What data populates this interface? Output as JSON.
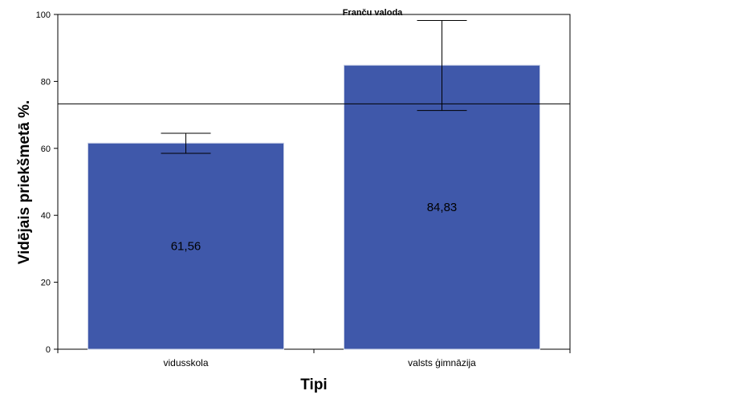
{
  "chart_data": {
    "type": "bar",
    "title": "Franču valoda",
    "xlabel": "Tipi",
    "ylabel": "Vidējais priekšmetā %.",
    "categories": [
      "vidusskola",
      "valsts ģimnāzija"
    ],
    "values": [
      61.56,
      84.83
    ],
    "value_labels": [
      "61,56",
      "84,83"
    ],
    "error_bars": [
      {
        "low": 58.5,
        "high": 64.5
      },
      {
        "low": 71.3,
        "high": 98.2
      }
    ],
    "reference_line": 73.3,
    "ylim": [
      0,
      100
    ],
    "yticks": [
      0,
      20,
      40,
      60,
      80,
      100
    ],
    "grid": false,
    "bar_color": "#3f58aa"
  }
}
